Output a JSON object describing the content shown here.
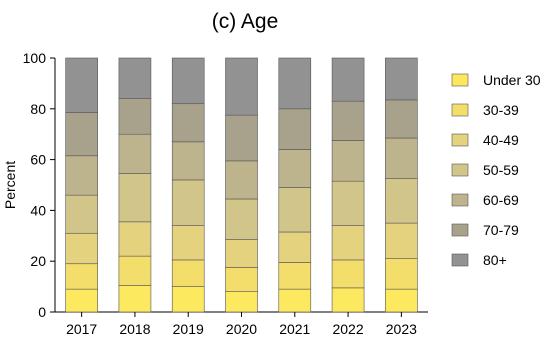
{
  "chart_data": {
    "type": "bar",
    "stacked": true,
    "title": "(c) Age",
    "xlabel": "",
    "ylabel": "Percent",
    "ylim": [
      0,
      100
    ],
    "yticks": [
      0,
      20,
      40,
      60,
      80,
      100
    ],
    "categories": [
      "2017",
      "2018",
      "2019",
      "2020",
      "2021",
      "2022",
      "2023"
    ],
    "legend_position": "right",
    "grid": false,
    "series": [
      {
        "name": "Under 30",
        "color": "#fce95f",
        "values": [
          9,
          10.5,
          10,
          8,
          9,
          9.5,
          9
        ]
      },
      {
        "name": "30-39",
        "color": "#f3de6b",
        "values": [
          10,
          11.5,
          10.5,
          9.5,
          10.5,
          11,
          12
        ]
      },
      {
        "name": "40-49",
        "color": "#e4d27f",
        "values": [
          12,
          13.5,
          13.5,
          11,
          12,
          13.5,
          14
        ]
      },
      {
        "name": "50-59",
        "color": "#d2c58a",
        "values": [
          15,
          19,
          18,
          16,
          17.5,
          17.5,
          17.5
        ]
      },
      {
        "name": "60-69",
        "color": "#bdb48e",
        "values": [
          15.5,
          15.5,
          15,
          15,
          15,
          16,
          16
        ]
      },
      {
        "name": "70-79",
        "color": "#a8a28d",
        "values": [
          17,
          14,
          15,
          18,
          16,
          15.5,
          15
        ]
      },
      {
        "name": "80+",
        "color": "#929292",
        "values": [
          21.5,
          16,
          18,
          22.5,
          20,
          17,
          16.5
        ]
      }
    ]
  }
}
